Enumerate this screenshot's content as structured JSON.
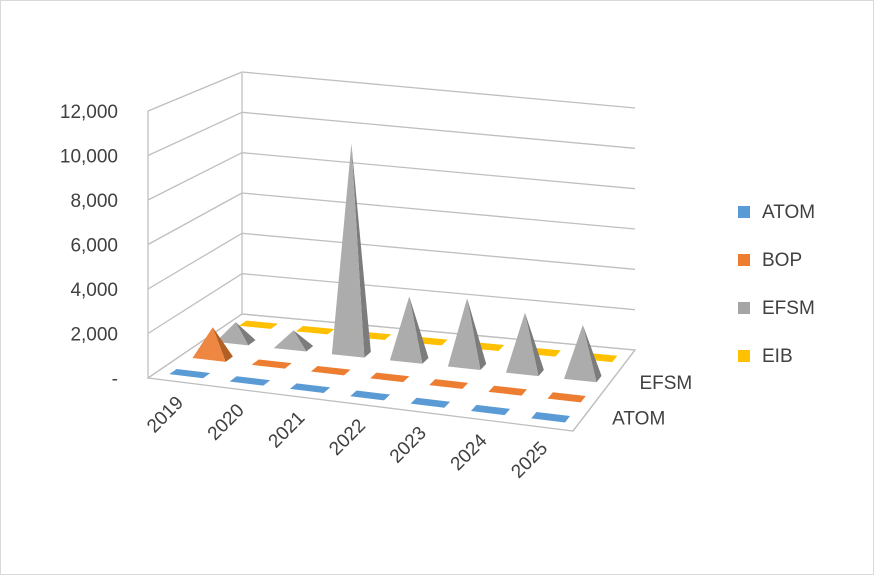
{
  "chart_data": {
    "type": "bar",
    "shape": "3d-pyramid",
    "categories": [
      "2019",
      "2020",
      "2021",
      "2022",
      "2023",
      "2024",
      "2025"
    ],
    "depth_labels": [
      "ATOM",
      "EFSM"
    ],
    "ylim": [
      0,
      12000
    ],
    "yticks": [
      0,
      2000,
      4000,
      6000,
      8000,
      10000,
      12000
    ],
    "ytick_labels": [
      "-",
      "2,000",
      "4,000",
      "6,000",
      "8,000",
      "10,000",
      "12,000"
    ],
    "grid": true,
    "legend_position": "right",
    "series": [
      {
        "name": "ATOM",
        "color": "#5b9bd5",
        "values": [
          0,
          0,
          0,
          0,
          0,
          0,
          0
        ]
      },
      {
        "name": "BOP",
        "color": "#ed7d31",
        "values": [
          1400,
          0,
          0,
          0,
          0,
          0,
          0
        ]
      },
      {
        "name": "EFSM",
        "color": "#a5a5a5",
        "values": [
          900,
          800,
          10000,
          3000,
          3200,
          2800,
          2500
        ]
      },
      {
        "name": "EIB",
        "color": "#ffc000",
        "values": [
          0,
          0,
          0,
          0,
          0,
          0,
          0
        ]
      }
    ]
  }
}
